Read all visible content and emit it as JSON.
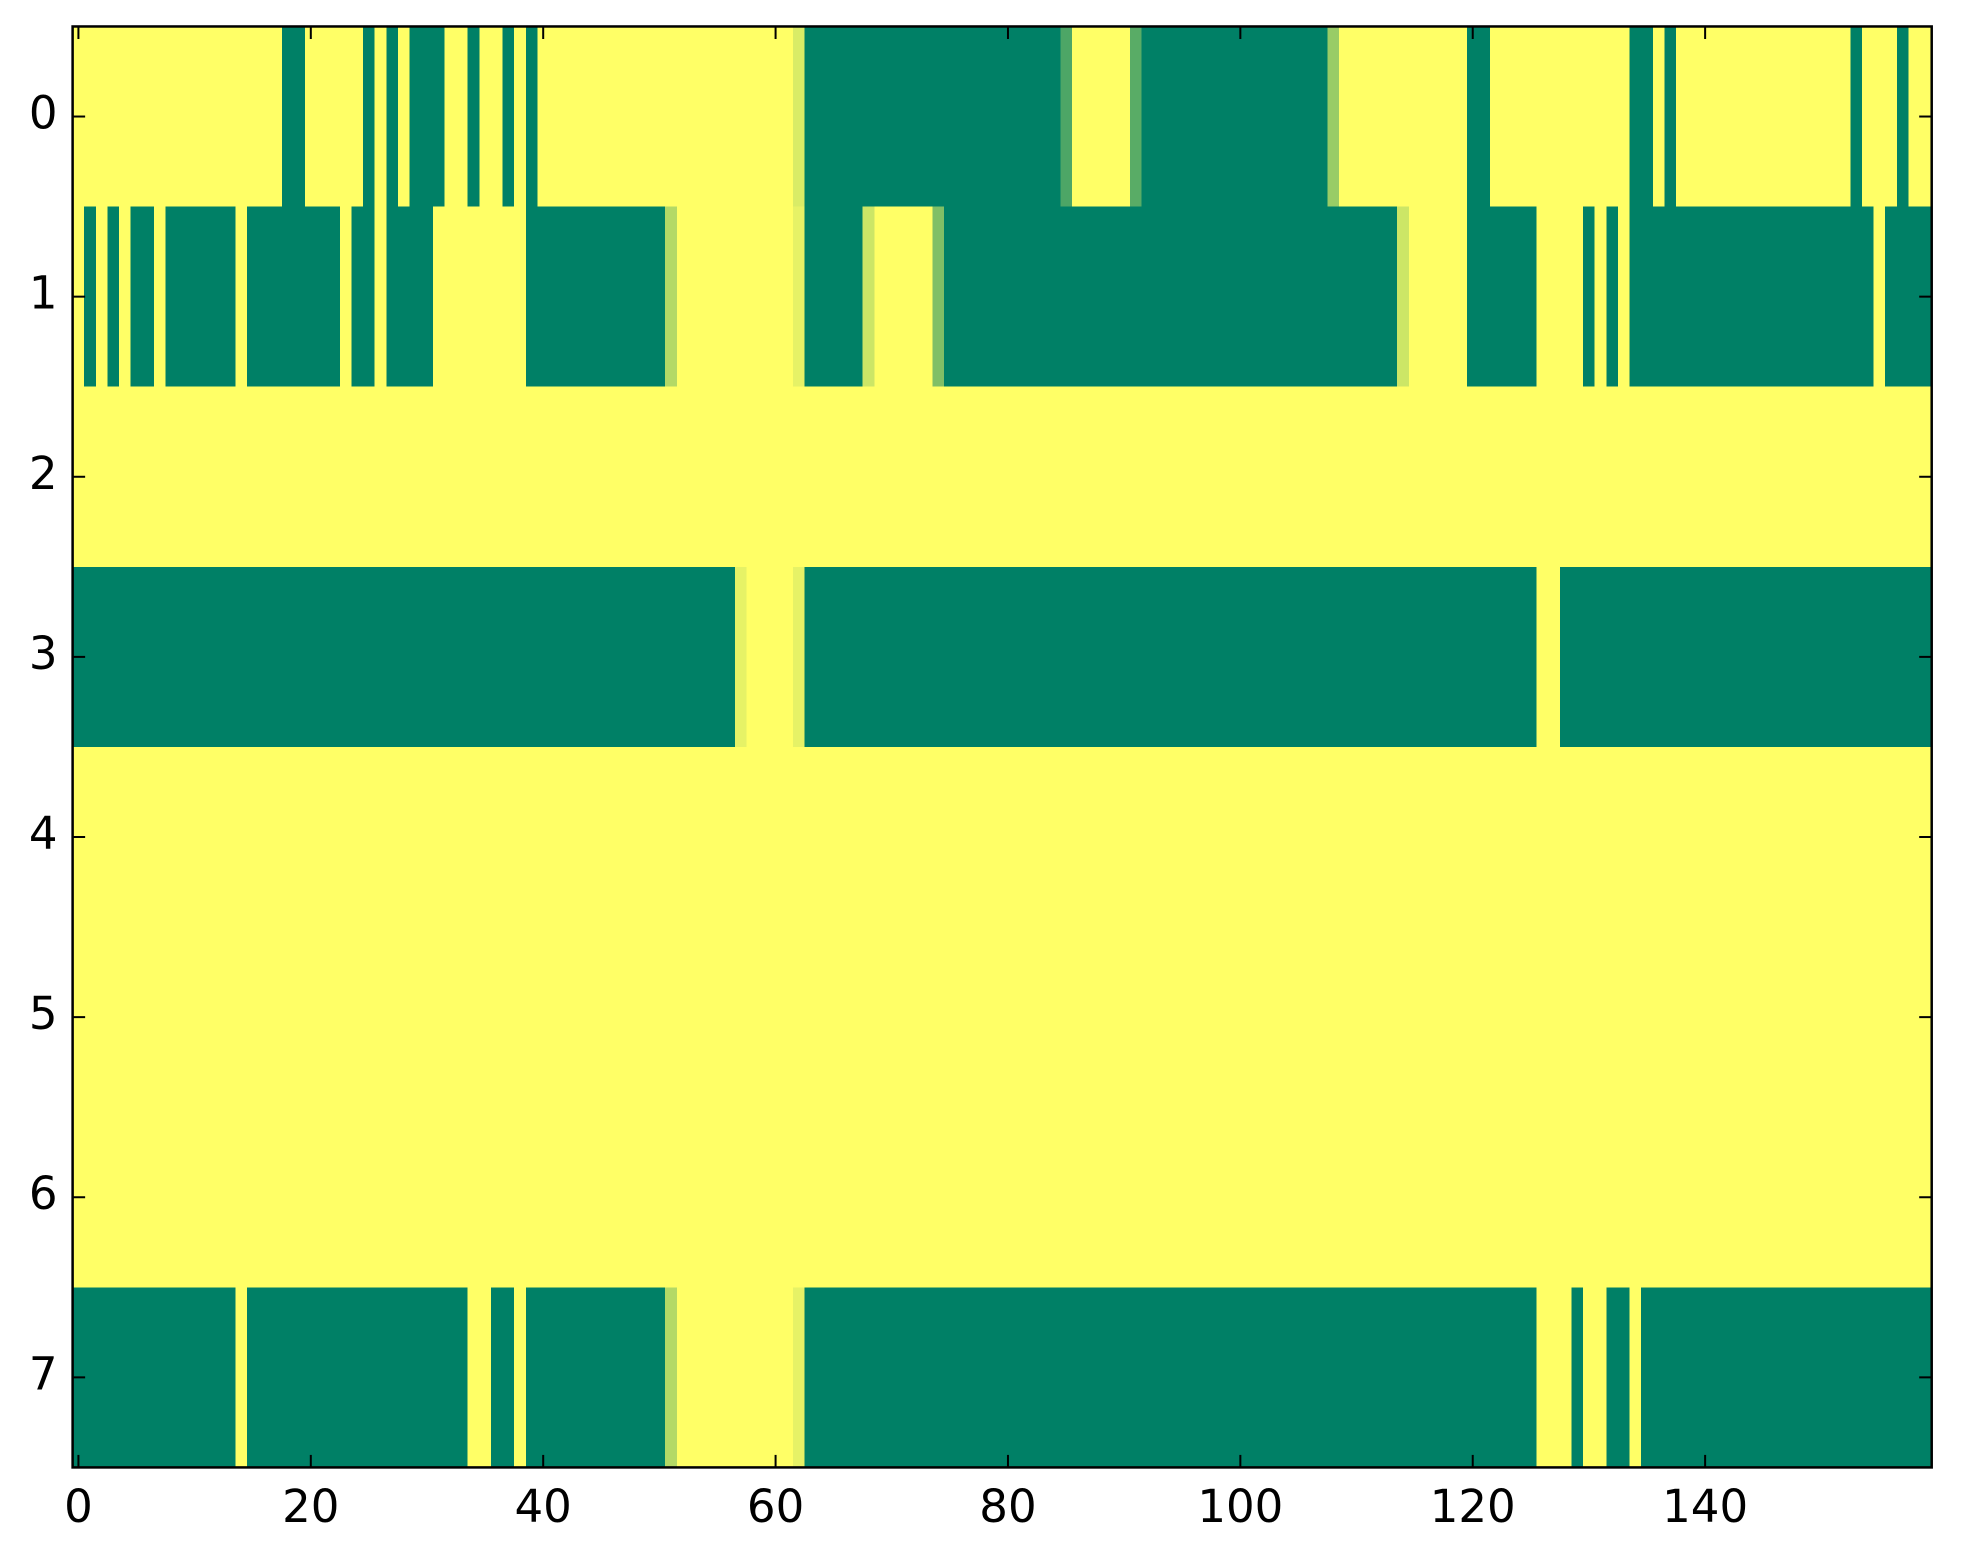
{
  "chart_data": {
    "type": "heatmap",
    "colormap": "summer",
    "clim": [
      0,
      1
    ],
    "xlim": [
      -0.5,
      159.5
    ],
    "ylim": [
      7.5,
      -0.5
    ],
    "xticks": [
      0,
      20,
      40,
      60,
      80,
      100,
      120,
      140
    ],
    "yticks": [
      0,
      1,
      2,
      3,
      4,
      5,
      6,
      7
    ],
    "z": [
      [
        1,
        1,
        1,
        1,
        1,
        1,
        1,
        1,
        1,
        1,
        1,
        1,
        1,
        1,
        1,
        1,
        1,
        1,
        0,
        0,
        1,
        1,
        1,
        1,
        1,
        0,
        1,
        0,
        1,
        0,
        0,
        0,
        1,
        1,
        0,
        1,
        1,
        0,
        1,
        0,
        1,
        1,
        1,
        1,
        1,
        1,
        1,
        1,
        1,
        1,
        1,
        1,
        1,
        1,
        1,
        1,
        1,
        1,
        1,
        1,
        1,
        1,
        0.85,
        0,
        0,
        0,
        0,
        0,
        0,
        0,
        0,
        0,
        0,
        0,
        0,
        0,
        0,
        0,
        0,
        0,
        0,
        0,
        0,
        0,
        0,
        0.3,
        1,
        1,
        1,
        1,
        1,
        0.35,
        0,
        0,
        0,
        0,
        0,
        0,
        0,
        0,
        0,
        0,
        0,
        0,
        0,
        0,
        0,
        0,
        0.6,
        1,
        1,
        1,
        1,
        1,
        1,
        1,
        1,
        1,
        1,
        1,
        0,
        0,
        1,
        1,
        1,
        1,
        1,
        1,
        1,
        1,
        1,
        1,
        1,
        1,
        0,
        0,
        1,
        0,
        1,
        1,
        1,
        1,
        1,
        1,
        1,
        1,
        1,
        1,
        1,
        1,
        1,
        1,
        1,
        0,
        1,
        1,
        1,
        0,
        1,
        1
      ],
      [
        1,
        0,
        1,
        0,
        1,
        0,
        0,
        1,
        0,
        0,
        0,
        0,
        0,
        0,
        1,
        0,
        0,
        0,
        0,
        0,
        0,
        0,
        0,
        1,
        0,
        0,
        1,
        0,
        0,
        0,
        0,
        1,
        1,
        1,
        1,
        1,
        1,
        1,
        1,
        0,
        0,
        0,
        0,
        0,
        0,
        0,
        0,
        0,
        0,
        0,
        0,
        0.7,
        1,
        1,
        1,
        1,
        1,
        1,
        1,
        1,
        1,
        1,
        0.9,
        0,
        0,
        0,
        0,
        0,
        0.8,
        1,
        1,
        1,
        1,
        1,
        0.5,
        0,
        0,
        0,
        0,
        0,
        0,
        0,
        0,
        0,
        0,
        0,
        0,
        0,
        0,
        0,
        0,
        0,
        0,
        0,
        0,
        0,
        0,
        0,
        0,
        0,
        0,
        0,
        0,
        0,
        0,
        0,
        0,
        0,
        0,
        0,
        0,
        0,
        0,
        0,
        0.8,
        1,
        1,
        1,
        1,
        1,
        0,
        0,
        0,
        0,
        0,
        0,
        1,
        1,
        1,
        1,
        0,
        1,
        0,
        1,
        0,
        0,
        0,
        0,
        0,
        0,
        0,
        0,
        0,
        0,
        0,
        0,
        0,
        0,
        0,
        0,
        0,
        0,
        0,
        0,
        0,
        1,
        0,
        0,
        0,
        0
      ],
      [
        1,
        1,
        1,
        1,
        1,
        1,
        1,
        1,
        1,
        1,
        1,
        1,
        1,
        1,
        1,
        1,
        1,
        1,
        1,
        1,
        1,
        1,
        1,
        1,
        1,
        1,
        1,
        1,
        1,
        1,
        1,
        1,
        1,
        1,
        1,
        1,
        1,
        1,
        1,
        1,
        1,
        1,
        1,
        1,
        1,
        1,
        1,
        1,
        1,
        1,
        1,
        1,
        1,
        1,
        1,
        1,
        1,
        1,
        1,
        1,
        1,
        1,
        1,
        1,
        1,
        1,
        1,
        1,
        1,
        1,
        1,
        1,
        1,
        1,
        1,
        1,
        1,
        1,
        1,
        1,
        1,
        1,
        1,
        1,
        1,
        1,
        1,
        1,
        1,
        1,
        1,
        1,
        1,
        1,
        1,
        1,
        1,
        1,
        1,
        1,
        1,
        1,
        1,
        1,
        1,
        1,
        1,
        1,
        1,
        1,
        1,
        1,
        1,
        1,
        1,
        1,
        1,
        1,
        1,
        1,
        1,
        1,
        1,
        1,
        1,
        1,
        1,
        1,
        1,
        1,
        1,
        1,
        1,
        1,
        1,
        1,
        1,
        1,
        1,
        1,
        1,
        1,
        1,
        1,
        1,
        1,
        1,
        1,
        1,
        1,
        1,
        1,
        1,
        1,
        1,
        1,
        1,
        1,
        1,
        1
      ],
      [
        0,
        0,
        0,
        0,
        0,
        0,
        0,
        0,
        0,
        0,
        0,
        0,
        0,
        0,
        0,
        0,
        0,
        0,
        0,
        0,
        0,
        0,
        0,
        0,
        0,
        0,
        0,
        0,
        0,
        0,
        0,
        0,
        0,
        0,
        0,
        0,
        0,
        0,
        0,
        0,
        0,
        0,
        0,
        0,
        0,
        0,
        0,
        0,
        0,
        0,
        0,
        0,
        0,
        0,
        0,
        0,
        0,
        0.9,
        1,
        1,
        1,
        1,
        0.9,
        0,
        0,
        0,
        0,
        0,
        0,
        0,
        0,
        0,
        0,
        0,
        0,
        0,
        0,
        0,
        0,
        0,
        0,
        0,
        0,
        0,
        0,
        0,
        0,
        0,
        0,
        0,
        0,
        0,
        0,
        0,
        0,
        0,
        0,
        0,
        0,
        0,
        0,
        0,
        0,
        0,
        0,
        0,
        0,
        0,
        0,
        0,
        0,
        0,
        0,
        0,
        0,
        0,
        0,
        0,
        0,
        0,
        0,
        0,
        0,
        0,
        0,
        0,
        1,
        1,
        0,
        0,
        0,
        0,
        0,
        0,
        0,
        0,
        0,
        0,
        0,
        0,
        0,
        0,
        0,
        0,
        0,
        0,
        0,
        0,
        0,
        0,
        0,
        0,
        0,
        0,
        0,
        0,
        0,
        0,
        0,
        0
      ],
      [
        1,
        1,
        1,
        1,
        1,
        1,
        1,
        1,
        1,
        1,
        1,
        1,
        1,
        1,
        1,
        1,
        1,
        1,
        1,
        1,
        1,
        1,
        1,
        1,
        1,
        1,
        1,
        1,
        1,
        1,
        1,
        1,
        1,
        1,
        1,
        1,
        1,
        1,
        1,
        1,
        1,
        1,
        1,
        1,
        1,
        1,
        1,
        1,
        1,
        1,
        1,
        1,
        1,
        1,
        1,
        1,
        1,
        1,
        1,
        1,
        1,
        1,
        1,
        1,
        1,
        1,
        1,
        1,
        1,
        1,
        1,
        1,
        1,
        1,
        1,
        1,
        1,
        1,
        1,
        1,
        1,
        1,
        1,
        1,
        1,
        1,
        1,
        1,
        1,
        1,
        1,
        1,
        1,
        1,
        1,
        1,
        1,
        1,
        1,
        1,
        1,
        1,
        1,
        1,
        1,
        1,
        1,
        1,
        1,
        1,
        1,
        1,
        1,
        1,
        1,
        1,
        1,
        1,
        1,
        1,
        1,
        1,
        1,
        1,
        1,
        1,
        1,
        1,
        1,
        1,
        1,
        1,
        1,
        1,
        1,
        1,
        1,
        1,
        1,
        1,
        1,
        1,
        1,
        1,
        1,
        1,
        1,
        1,
        1,
        1,
        1,
        1,
        1,
        1,
        1,
        1,
        1,
        1,
        1,
        1
      ],
      [
        1,
        1,
        1,
        1,
        1,
        1,
        1,
        1,
        1,
        1,
        1,
        1,
        1,
        1,
        1,
        1,
        1,
        1,
        1,
        1,
        1,
        1,
        1,
        1,
        1,
        1,
        1,
        1,
        1,
        1,
        1,
        1,
        1,
        1,
        1,
        1,
        1,
        1,
        1,
        1,
        1,
        1,
        1,
        1,
        1,
        1,
        1,
        1,
        1,
        1,
        1,
        1,
        1,
        1,
        1,
        1,
        1,
        1,
        1,
        1,
        1,
        1,
        1,
        1,
        1,
        1,
        1,
        1,
        1,
        1,
        1,
        1,
        1,
        1,
        1,
        1,
        1,
        1,
        1,
        1,
        1,
        1,
        1,
        1,
        1,
        1,
        1,
        1,
        1,
        1,
        1,
        1,
        1,
        1,
        1,
        1,
        1,
        1,
        1,
        1,
        1,
        1,
        1,
        1,
        1,
        1,
        1,
        1,
        1,
        1,
        1,
        1,
        1,
        1,
        1,
        1,
        1,
        1,
        1,
        1,
        1,
        1,
        1,
        1,
        1,
        1,
        1,
        1,
        1,
        1,
        1,
        1,
        1,
        1,
        1,
        1,
        1,
        1,
        1,
        1,
        1,
        1,
        1,
        1,
        1,
        1,
        1,
        1,
        1,
        1,
        1,
        1,
        1,
        1,
        1,
        1,
        1,
        1,
        1,
        1
      ],
      [
        1,
        1,
        1,
        1,
        1,
        1,
        1,
        1,
        1,
        1,
        1,
        1,
        1,
        1,
        1,
        1,
        1,
        1,
        1,
        1,
        1,
        1,
        1,
        1,
        1,
        1,
        1,
        1,
        1,
        1,
        1,
        1,
        1,
        1,
        1,
        1,
        1,
        1,
        1,
        1,
        1,
        1,
        1,
        1,
        1,
        1,
        1,
        1,
        1,
        1,
        1,
        1,
        1,
        1,
        1,
        1,
        1,
        1,
        1,
        1,
        1,
        1,
        1,
        1,
        1,
        1,
        1,
        1,
        1,
        1,
        1,
        1,
        1,
        1,
        1,
        1,
        1,
        1,
        1,
        1,
        1,
        1,
        1,
        1,
        1,
        1,
        1,
        1,
        1,
        1,
        1,
        1,
        1,
        1,
        1,
        1,
        1,
        1,
        1,
        1,
        1,
        1,
        1,
        1,
        1,
        1,
        1,
        1,
        1,
        1,
        1,
        1,
        1,
        1,
        1,
        1,
        1,
        1,
        1,
        1,
        1,
        1,
        1,
        1,
        1,
        1,
        1,
        1,
        1,
        1,
        1,
        1,
        1,
        1,
        1,
        1,
        1,
        1,
        1,
        1,
        1,
        1,
        1,
        1,
        1,
        1,
        1,
        1,
        1,
        1,
        1,
        1,
        1,
        1,
        1,
        1,
        1,
        1,
        1,
        1
      ],
      [
        0,
        0,
        0,
        0,
        0,
        0,
        0,
        0,
        0,
        0,
        0,
        0,
        0,
        0,
        1,
        0,
        0,
        0,
        0,
        0,
        0,
        0,
        0,
        0,
        0,
        0,
        0,
        0,
        0,
        0,
        0,
        0,
        0,
        0,
        1,
        1,
        0,
        0,
        1,
        0,
        0,
        0,
        0,
        0,
        0,
        0,
        0,
        0,
        0,
        0,
        0,
        0.7,
        1,
        1,
        1,
        1,
        1,
        1,
        1,
        1,
        1,
        1,
        0.9,
        0,
        0,
        0,
        0,
        0,
        0,
        0,
        0,
        0,
        0,
        0,
        0,
        0,
        0,
        0,
        0,
        0,
        0,
        0,
        0,
        0,
        0,
        0,
        0,
        0,
        0,
        0,
        0,
        0,
        0,
        0,
        0,
        0,
        0,
        0,
        0,
        0,
        0,
        0,
        0,
        0,
        0,
        0,
        0,
        0,
        0,
        0,
        0,
        0,
        0,
        0,
        0,
        0,
        0,
        0,
        0,
        0,
        0,
        0,
        0,
        0,
        0,
        0,
        1,
        1,
        1,
        0,
        1,
        1,
        0,
        0,
        1,
        0,
        0,
        0,
        0,
        0,
        0,
        0,
        0,
        0,
        0,
        0,
        0,
        0,
        0,
        0,
        0,
        0,
        0,
        0,
        0,
        0,
        0,
        0,
        0,
        0
      ]
    ]
  }
}
